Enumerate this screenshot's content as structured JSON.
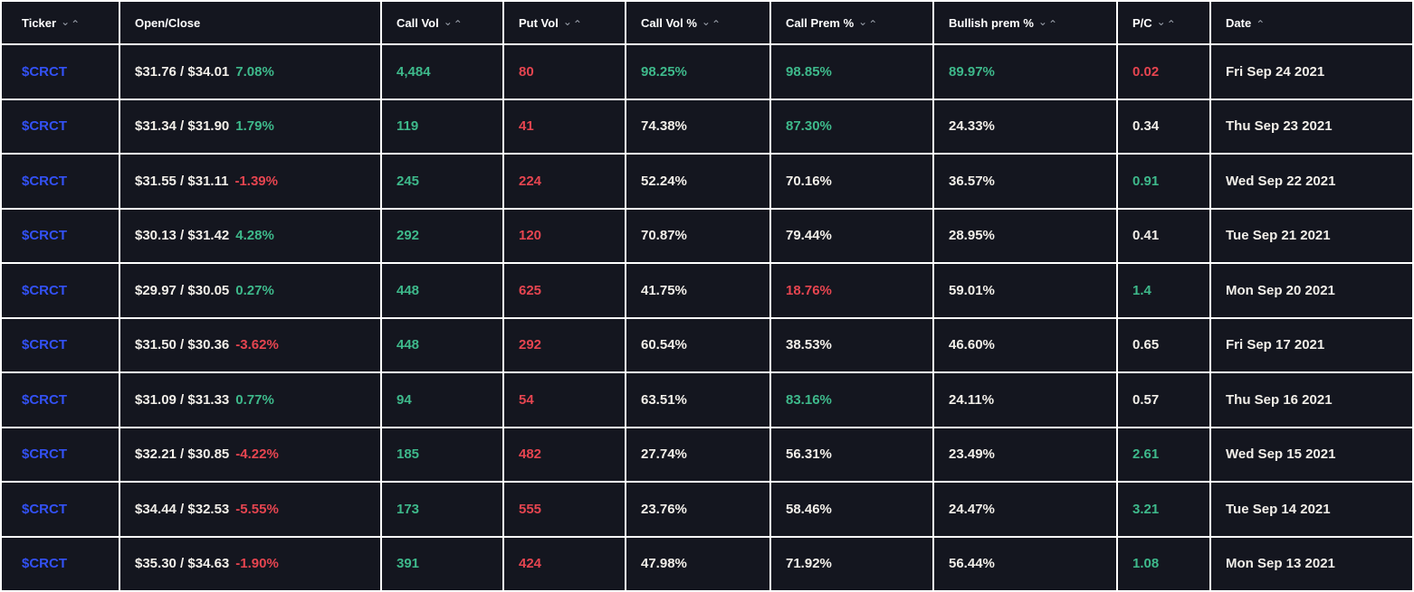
{
  "colors": {
    "background": "#14161f",
    "grid_line": "#ffffff",
    "header_text": "#ffffff",
    "text": "#f2efe9",
    "blue": "#3351f5",
    "green": "#3eb98b",
    "red": "#e64550",
    "arrow": "#9aa0ab"
  },
  "table": {
    "columns": [
      {
        "label": "Ticker",
        "sort": "both"
      },
      {
        "label": "Open/Close",
        "sort": "none"
      },
      {
        "label": "Call Vol",
        "sort": "both"
      },
      {
        "label": "Put Vol",
        "sort": "both"
      },
      {
        "label": "Call Vol %",
        "sort": "both"
      },
      {
        "label": "Call Prem %",
        "sort": "both"
      },
      {
        "label": "Bullish prem %",
        "sort": "both"
      },
      {
        "label": "P/C",
        "sort": "both"
      },
      {
        "label": "Date",
        "sort": "asc"
      }
    ],
    "sort_icons": {
      "desc": "⌄",
      "asc": "⌃"
    },
    "rows": [
      {
        "ticker": "$CRCT",
        "open_close": "$31.76 / $34.01",
        "change": "7.08%",
        "change_color": "green",
        "call_vol": "4,484",
        "put_vol": "80",
        "call_vol_pct": "98.25%",
        "call_vol_pct_color": "green",
        "call_prem_pct": "98.85%",
        "call_prem_pct_color": "green",
        "bullish_prem_pct": "89.97%",
        "bullish_prem_pct_color": "green",
        "pc": "0.02",
        "pc_color": "red",
        "date": "Fri Sep 24 2021"
      },
      {
        "ticker": "$CRCT",
        "open_close": "$31.34 / $31.90",
        "change": "1.79%",
        "change_color": "green",
        "call_vol": "119",
        "put_vol": "41",
        "call_vol_pct": "74.38%",
        "call_vol_pct_color": "text",
        "call_prem_pct": "87.30%",
        "call_prem_pct_color": "green",
        "bullish_prem_pct": "24.33%",
        "bullish_prem_pct_color": "text",
        "pc": "0.34",
        "pc_color": "text",
        "date": "Thu Sep 23 2021"
      },
      {
        "ticker": "$CRCT",
        "open_close": "$31.55 / $31.11",
        "change": "-1.39%",
        "change_color": "red",
        "call_vol": "245",
        "put_vol": "224",
        "call_vol_pct": "52.24%",
        "call_vol_pct_color": "text",
        "call_prem_pct": "70.16%",
        "call_prem_pct_color": "text",
        "bullish_prem_pct": "36.57%",
        "bullish_prem_pct_color": "text",
        "pc": "0.91",
        "pc_color": "green",
        "date": "Wed Sep 22 2021"
      },
      {
        "ticker": "$CRCT",
        "open_close": "$30.13 / $31.42",
        "change": "4.28%",
        "change_color": "green",
        "call_vol": "292",
        "put_vol": "120",
        "call_vol_pct": "70.87%",
        "call_vol_pct_color": "text",
        "call_prem_pct": "79.44%",
        "call_prem_pct_color": "text",
        "bullish_prem_pct": "28.95%",
        "bullish_prem_pct_color": "text",
        "pc": "0.41",
        "pc_color": "text",
        "date": "Tue Sep 21 2021"
      },
      {
        "ticker": "$CRCT",
        "open_close": "$29.97 / $30.05",
        "change": "0.27%",
        "change_color": "green",
        "call_vol": "448",
        "put_vol": "625",
        "call_vol_pct": "41.75%",
        "call_vol_pct_color": "text",
        "call_prem_pct": "18.76%",
        "call_prem_pct_color": "red",
        "bullish_prem_pct": "59.01%",
        "bullish_prem_pct_color": "text",
        "pc": "1.4",
        "pc_color": "green",
        "date": "Mon Sep 20 2021"
      },
      {
        "ticker": "$CRCT",
        "open_close": "$31.50 / $30.36",
        "change": "-3.62%",
        "change_color": "red",
        "call_vol": "448",
        "put_vol": "292",
        "call_vol_pct": "60.54%",
        "call_vol_pct_color": "text",
        "call_prem_pct": "38.53%",
        "call_prem_pct_color": "text",
        "bullish_prem_pct": "46.60%",
        "bullish_prem_pct_color": "text",
        "pc": "0.65",
        "pc_color": "text",
        "date": "Fri Sep 17 2021"
      },
      {
        "ticker": "$CRCT",
        "open_close": "$31.09 / $31.33",
        "change": "0.77%",
        "change_color": "green",
        "call_vol": "94",
        "put_vol": "54",
        "call_vol_pct": "63.51%",
        "call_vol_pct_color": "text",
        "call_prem_pct": "83.16%",
        "call_prem_pct_color": "green",
        "bullish_prem_pct": "24.11%",
        "bullish_prem_pct_color": "text",
        "pc": "0.57",
        "pc_color": "text",
        "date": "Thu Sep 16 2021"
      },
      {
        "ticker": "$CRCT",
        "open_close": "$32.21 / $30.85",
        "change": "-4.22%",
        "change_color": "red",
        "call_vol": "185",
        "put_vol": "482",
        "call_vol_pct": "27.74%",
        "call_vol_pct_color": "text",
        "call_prem_pct": "56.31%",
        "call_prem_pct_color": "text",
        "bullish_prem_pct": "23.49%",
        "bullish_prem_pct_color": "text",
        "pc": "2.61",
        "pc_color": "green",
        "date": "Wed Sep 15 2021"
      },
      {
        "ticker": "$CRCT",
        "open_close": "$34.44 / $32.53",
        "change": "-5.55%",
        "change_color": "red",
        "call_vol": "173",
        "put_vol": "555",
        "call_vol_pct": "23.76%",
        "call_vol_pct_color": "text",
        "call_prem_pct": "58.46%",
        "call_prem_pct_color": "text",
        "bullish_prem_pct": "24.47%",
        "bullish_prem_pct_color": "text",
        "pc": "3.21",
        "pc_color": "green",
        "date": "Tue Sep 14 2021"
      },
      {
        "ticker": "$CRCT",
        "open_close": "$35.30 / $34.63",
        "change": "-1.90%",
        "change_color": "red",
        "call_vol": "391",
        "put_vol": "424",
        "call_vol_pct": "47.98%",
        "call_vol_pct_color": "text",
        "call_prem_pct": "71.92%",
        "call_prem_pct_color": "text",
        "bullish_prem_pct": "56.44%",
        "bullish_prem_pct_color": "text",
        "pc": "1.08",
        "pc_color": "green",
        "date": "Mon Sep 13 2021"
      }
    ]
  }
}
